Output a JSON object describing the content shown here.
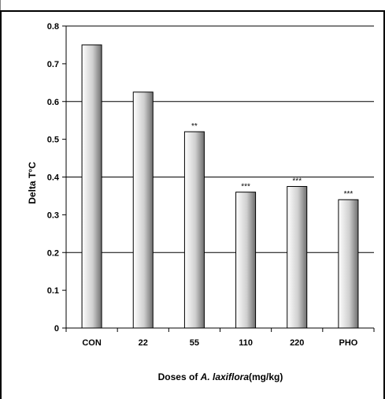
{
  "chart_data": {
    "type": "bar",
    "categories": [
      "CON",
      "22",
      "55",
      "110",
      "220",
      "PHO"
    ],
    "values": [
      0.75,
      0.625,
      0.52,
      0.36,
      0.375,
      0.34
    ],
    "annotations": [
      "",
      "",
      "**",
      "***",
      "***",
      "***"
    ],
    "ylabel": "Delta T°C",
    "xlabel_parts": [
      "Doses of ",
      "A. laxiflora",
      "(mg/kg)"
    ],
    "ylim": [
      0,
      0.8
    ],
    "yticks": [
      "0",
      "0.1",
      "0.2",
      "0.3",
      "0.4",
      "0.5",
      "0.6",
      "0.7",
      "0.8"
    ],
    "grid": true,
    "colors": {
      "bar_light": "#ffffff",
      "bar_dark": "#7a7a7a",
      "grid": "#000000"
    }
  }
}
